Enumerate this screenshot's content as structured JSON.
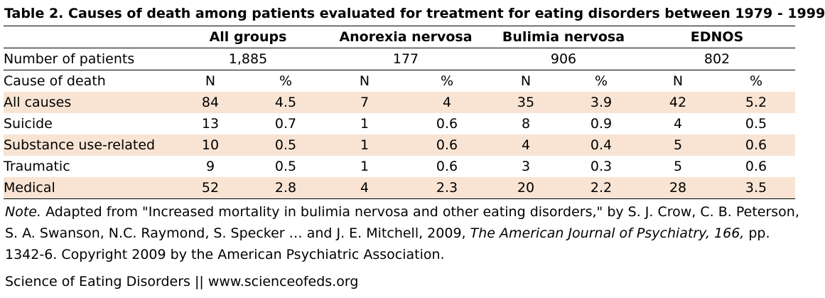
{
  "title": "Table 2. Causes of death among patients evaluated for treatment for eating disorders between 1979 - 1999",
  "groups": [
    "All groups",
    "Anorexia nervosa",
    "Bulimia nervosa",
    "EDNOS"
  ],
  "number_of_patients": {
    "label": "Number of patients",
    "values": [
      "1,885",
      "177",
      "906",
      "802"
    ]
  },
  "cause_header": {
    "label": "Cause of death",
    "n": "N",
    "pct": "%"
  },
  "rows": [
    {
      "label": "All causes",
      "values": [
        "84",
        "4.5",
        "7",
        "4",
        "35",
        "3.9",
        "42",
        "5.2"
      ]
    },
    {
      "label": "Suicide",
      "values": [
        "13",
        "0.7",
        "1",
        "0.6",
        "8",
        "0.9",
        "4",
        "0.5"
      ]
    },
    {
      "label": "Substance use-related",
      "values": [
        "10",
        "0.5",
        "1",
        "0.6",
        "4",
        "0.4",
        "5",
        "0.6"
      ]
    },
    {
      "label": "Traumatic",
      "values": [
        "9",
        "0.5",
        "1",
        "0.6",
        "3",
        "0.3",
        "5",
        "0.6"
      ]
    },
    {
      "label": "Medical",
      "values": [
        "52",
        "2.8",
        "4",
        "2.3",
        "20",
        "2.2",
        "28",
        "3.5"
      ]
    }
  ],
  "note": {
    "prefix": "Note.",
    "text1": " Adapted from \"Increased mortality in bulimia nervosa and other eating disorders,\" by S. J. Crow, C. B. Peterson, S. A. Swanson, N.C. Raymond, S. Specker … and J. E. Mitchell, 2009, ",
    "journal": "The American Journal of Psychiatry, 166,",
    "text2": " pp. 1342-6. Copyright 2009 by the American Psychiatric Association."
  },
  "credit": "Science of Eating Disorders || www.scienceofeds.org"
}
